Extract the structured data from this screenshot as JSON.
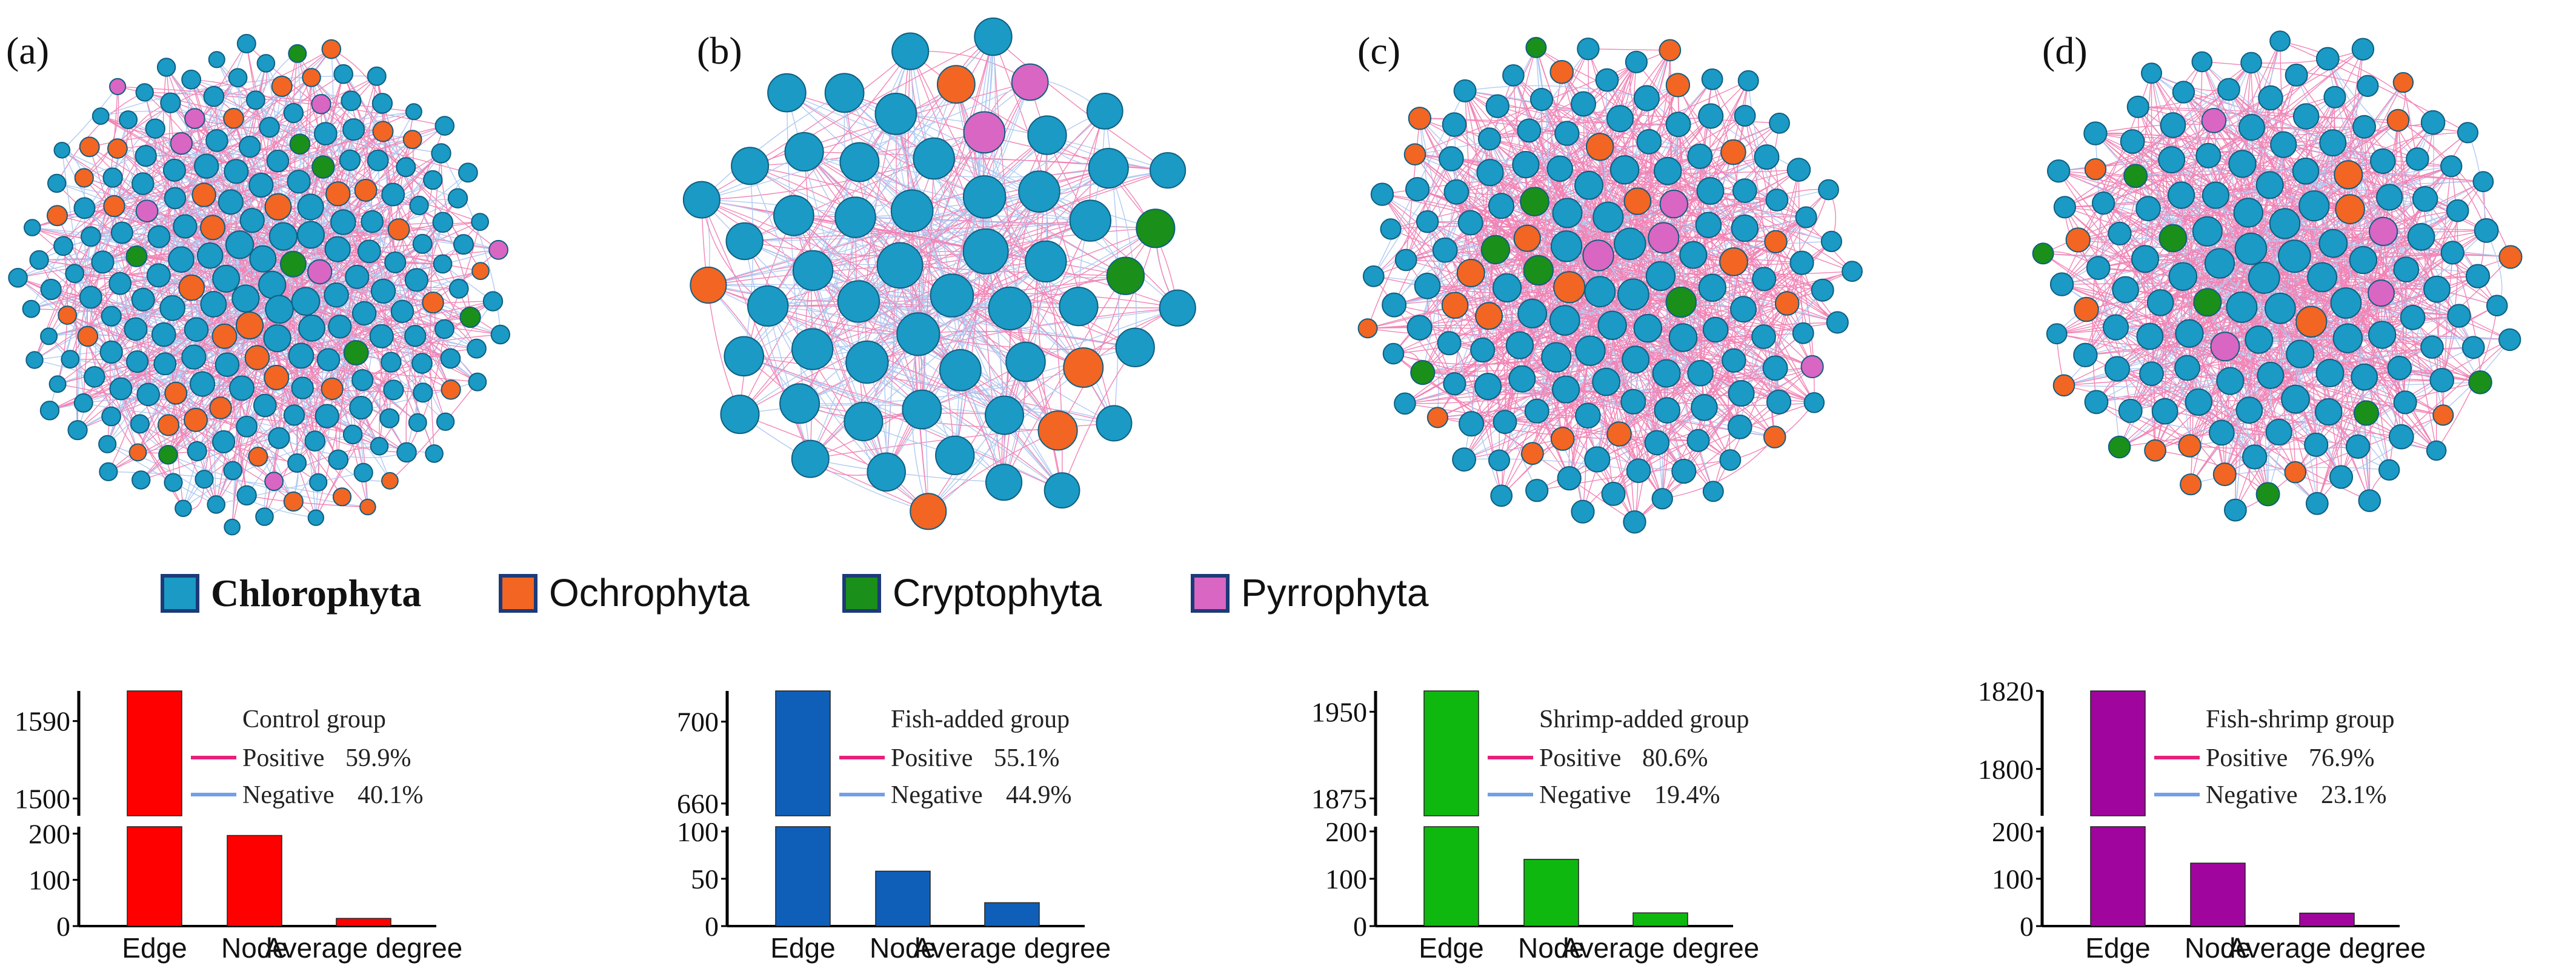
{
  "legend": [
    {
      "name": "Chlorophyta",
      "color": "#1a9ac4",
      "bold": true
    },
    {
      "name": "Ochrophyta",
      "color": "#f26522",
      "bold": false
    },
    {
      "name": "Cryptophyta",
      "color": "#1a8f1a",
      "bold": false
    },
    {
      "name": "Pyrrophyta",
      "color": "#d866c2",
      "bold": false
    }
  ],
  "network_colors": {
    "positive_edge": "#e8207a",
    "negative_edge": "#6fa0e8",
    "node_stroke": "#0f5f82"
  },
  "networks": [
    {
      "label": "(a)",
      "nodes": {
        "Chlorophyta": 170,
        "Ochrophyta": 38,
        "Cryptophyta": 8,
        "Pyrrophyta": 8
      }
    },
    {
      "label": "(b)",
      "nodes": {
        "Chlorophyta": 49,
        "Ochrophyta": 5,
        "Cryptophyta": 2,
        "Pyrrophyta": 2
      }
    },
    {
      "label": "(c)",
      "nodes": {
        "Chlorophyta": 120,
        "Ochrophyta": 22,
        "Cryptophyta": 6,
        "Pyrrophyta": 4
      }
    },
    {
      "label": "(d)",
      "nodes": {
        "Chlorophyta": 112,
        "Ochrophyta": 16,
        "Cryptophyta": 8,
        "Pyrrophyta": 4
      }
    }
  ],
  "chart_data": [
    {
      "type": "bar",
      "group": "Control group",
      "color": "#ff0000",
      "categories": [
        "Edge",
        "Node",
        "Average degree"
      ],
      "values": [
        1625,
        196,
        16.6
      ],
      "upper_ticks": [
        1590,
        1500
      ],
      "upper_range": [
        1480,
        1625
      ],
      "lower_ticks": [
        200,
        100,
        0
      ],
      "lower_range": [
        0,
        215
      ],
      "positive_label": "Positive",
      "positive_value": "59.9%",
      "negative_label": "Negative",
      "negative_value": "40.1%"
    },
    {
      "type": "bar",
      "group": "Fish-added group",
      "color": "#0f5fb8",
      "categories": [
        "Edge",
        "Node",
        "Average degree"
      ],
      "values": [
        715,
        58,
        24.7
      ],
      "upper_ticks": [
        700,
        660
      ],
      "upper_range": [
        654,
        715
      ],
      "lower_ticks": [
        100,
        50,
        0
      ],
      "lower_range": [
        0,
        105
      ],
      "positive_label": "Positive",
      "positive_value": "55.1%",
      "negative_label": "Negative",
      "negative_value": "44.9%"
    },
    {
      "type": "bar",
      "group": "Shrimp-added group",
      "color": "#0fb80f",
      "categories": [
        "Edge",
        "Node",
        "Average degree"
      ],
      "values": [
        1968,
        141,
        27.9
      ],
      "upper_ticks": [
        1950,
        1875
      ],
      "upper_range": [
        1860,
        1968
      ],
      "lower_ticks": [
        200,
        100,
        0
      ],
      "lower_range": [
        0,
        210
      ],
      "positive_label": "Positive",
      "positive_value": "80.6%",
      "negative_label": "Negative",
      "negative_value": "19.4%"
    },
    {
      "type": "bar",
      "group": "Fish-shrimp group",
      "color": "#a0069e",
      "categories": [
        "Edge",
        "Node",
        "Average degree"
      ],
      "values": [
        1820,
        133,
        27.4
      ],
      "upper_ticks": [
        1820,
        1800
      ],
      "upper_range": [
        1788,
        1820
      ],
      "lower_ticks": [
        200,
        100,
        0
      ],
      "lower_range": [
        0,
        210
      ],
      "positive_label": "Positive",
      "positive_value": "76.9%",
      "negative_label": "Negative",
      "negative_value": "23.1%"
    }
  ]
}
